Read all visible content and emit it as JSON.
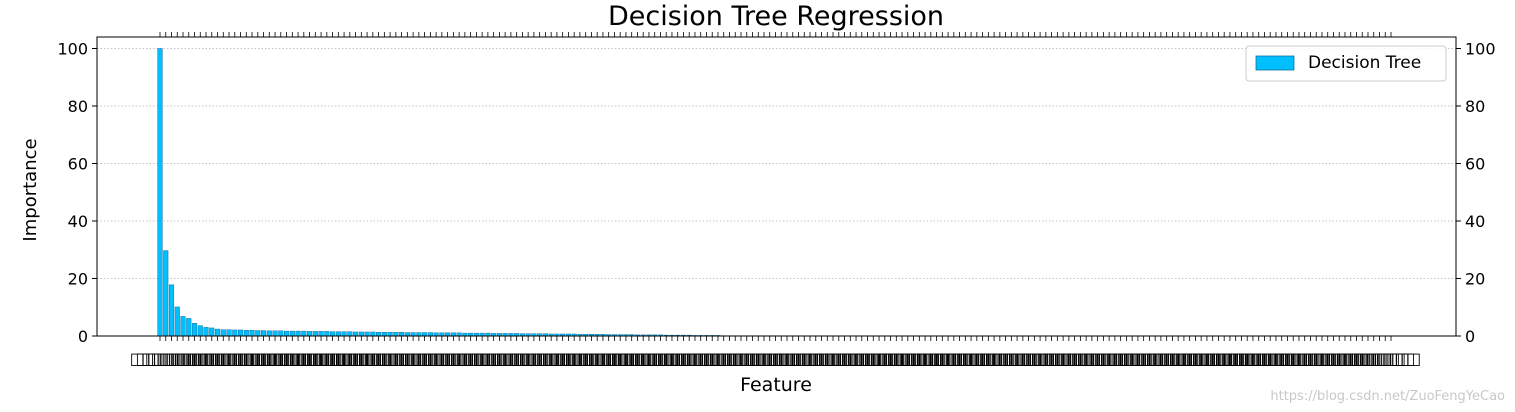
{
  "chart_data": {
    "type": "bar",
    "title": "Decision Tree Regression",
    "xlabel": "Feature",
    "ylabel": "Importance",
    "ylim": [
      0,
      104
    ],
    "yticks": [
      0,
      20,
      40,
      60,
      80,
      100
    ],
    "grid": "horizontal-dotted",
    "legend_position": "top-right",
    "bar_color": "#00BFFF",
    "bar_edge_color": "#1a6fa0",
    "series": [
      {
        "name": "Decision Tree",
        "values": [
          100,
          29.7,
          17.8,
          10.1,
          6.8,
          6.1,
          4.4,
          3.6,
          3.0,
          2.8,
          2.4,
          2.2,
          2.2,
          2.1,
          2.1,
          2.0,
          2.0,
          1.9,
          1.9,
          1.8,
          1.8,
          1.8,
          1.7,
          1.7,
          1.7,
          1.7,
          1.6,
          1.6,
          1.6,
          1.6,
          1.5,
          1.5,
          1.5,
          1.5,
          1.4,
          1.4,
          1.4,
          1.4,
          1.3,
          1.3,
          1.3,
          1.3,
          1.3,
          1.2,
          1.2,
          1.2,
          1.2,
          1.2,
          1.1,
          1.1,
          1.1,
          1.1,
          1.1,
          1.0,
          1.0,
          1.0,
          1.0,
          1.0,
          0.9,
          0.9,
          0.9,
          0.9,
          0.9,
          0.8,
          0.8,
          0.8,
          0.8,
          0.8,
          0.7,
          0.7,
          0.7,
          0.7,
          0.7,
          0.6,
          0.6,
          0.6,
          0.6,
          0.6,
          0.5,
          0.5,
          0.5,
          0.5,
          0.5,
          0.4,
          0.4,
          0.4,
          0.4,
          0.4,
          0.3,
          0.3,
          0.3,
          0.3,
          0.3,
          0.2,
          0.2,
          0.2,
          0.2,
          0.2,
          0.1,
          0.1,
          0.1,
          0.1,
          0.1,
          0.1,
          0.1,
          0.1,
          0.1,
          0.1,
          0.05,
          0.05,
          0.05,
          0.05,
          0.05,
          0.05,
          0.05,
          0.05,
          0.05,
          0.05,
          0.05,
          0.05,
          0.05,
          0.05,
          0.05,
          0.05,
          0.05,
          0.05,
          0.05,
          0.05,
          0.05,
          0.05,
          0.05,
          0.05,
          0.05,
          0.05,
          0.05,
          0.05,
          0.05,
          0.05,
          0.05,
          0.05,
          0.05,
          0.05,
          0.05,
          0.05,
          0.05,
          0.05,
          0.05,
          0.05,
          0.05,
          0.05,
          0.05,
          0.05,
          0.05,
          0.05,
          0.05,
          0.05,
          0.05,
          0.05,
          0.05,
          0.05,
          0.05,
          0.05,
          0.05,
          0.05,
          0.05,
          0.05,
          0.05,
          0.05,
          0.05,
          0.05,
          0.05,
          0.05,
          0.05,
          0.05,
          0.05,
          0.05,
          0.05,
          0.05,
          0.05,
          0.05,
          0.05,
          0.05,
          0.05,
          0.05,
          0.05,
          0.05,
          0.05,
          0.05,
          0.05,
          0.05,
          0.05,
          0.05,
          0.05,
          0.05,
          0.05,
          0.05,
          0.05,
          0.05,
          0.05,
          0.05,
          0.05,
          0.05,
          0.05,
          0.05,
          0.05,
          0.05,
          0.05,
          0.05,
          0.05,
          0.05,
          0.05,
          0.05,
          0.05,
          0.05,
          0.05
        ]
      }
    ],
    "tick_label_glyph": "□□□□"
  },
  "watermark": "https://blog.csdn.net/ZuoFengYeCao"
}
